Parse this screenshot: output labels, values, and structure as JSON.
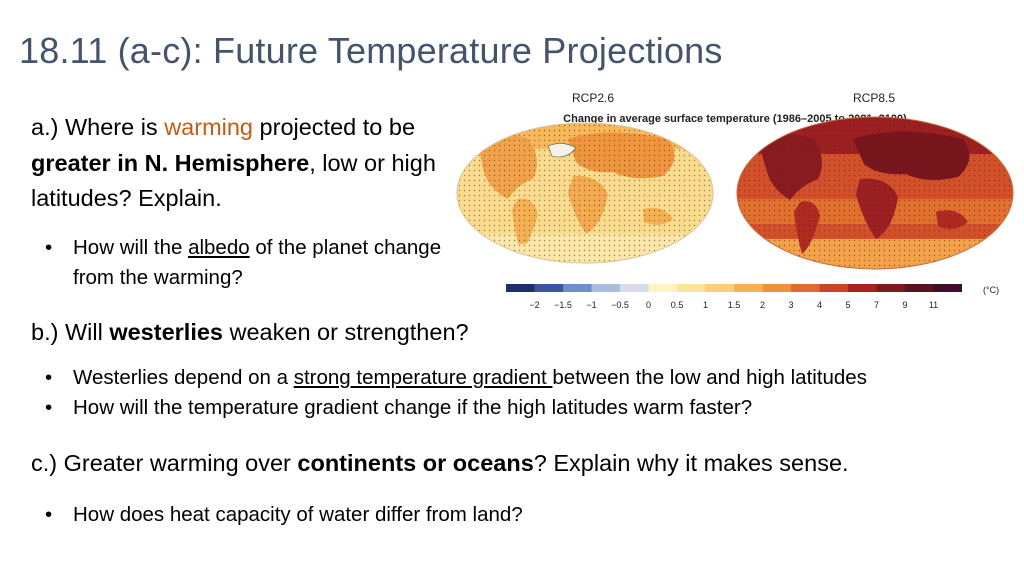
{
  "slide": {
    "title": "18.11 (a-c): Future Temperature Projections",
    "colors": {
      "title": "#44546a",
      "accent": "#c55a11"
    },
    "a": {
      "q_prefix": "a.) Where is ",
      "q_accent": "warming",
      "q_mid": " projected to be ",
      "q_bold": "greater in N. Hemisphere",
      "q_suffix": ", low or high latitudes? Explain.",
      "bullet_prefix": "How will the ",
      "bullet_underline": "albedo",
      "bullet_suffix": " of the planet change from the warming?"
    },
    "b": {
      "q_prefix": "b.) Will ",
      "q_bold": "westerlies",
      "q_suffix": " weaken or strengthen?",
      "bullet1_prefix": "Westerlies depend on a ",
      "bullet1_underline": "strong temperature gradient ",
      "bullet1_suffix": "between the low and high latitudes",
      "bullet2": "How will the temperature gradient change if the high latitudes warm faster?"
    },
    "c": {
      "q_prefix": "c.) Greater warming over ",
      "q_bold": "continents or oceans",
      "q_suffix": "? Explain why it makes sense.",
      "bullet": "How does heat capacity of water differ from land?"
    }
  },
  "figure": {
    "left_label": "RCP2.6",
    "right_label": "RCP8.5",
    "caption": "Change in average surface temperature (1986–2005 to 2081–2100)",
    "unit": "(°C)",
    "scale_colors": [
      "#20306b",
      "#3b55a0",
      "#6f8fca",
      "#a9bde0",
      "#d8dce6",
      "#fdf3c2",
      "#fde49a",
      "#fbd079",
      "#f7b154",
      "#f0913a",
      "#e06b2d",
      "#cc4426",
      "#a9221f",
      "#7d1a1f",
      "#5a1320",
      "#3f0e2a"
    ],
    "ticks": [
      "−2",
      "−1.5",
      "−1",
      "−0.5",
      "0",
      "0.5",
      "1",
      "1.5",
      "2",
      "3",
      "4",
      "5",
      "7",
      "9",
      "11"
    ]
  }
}
